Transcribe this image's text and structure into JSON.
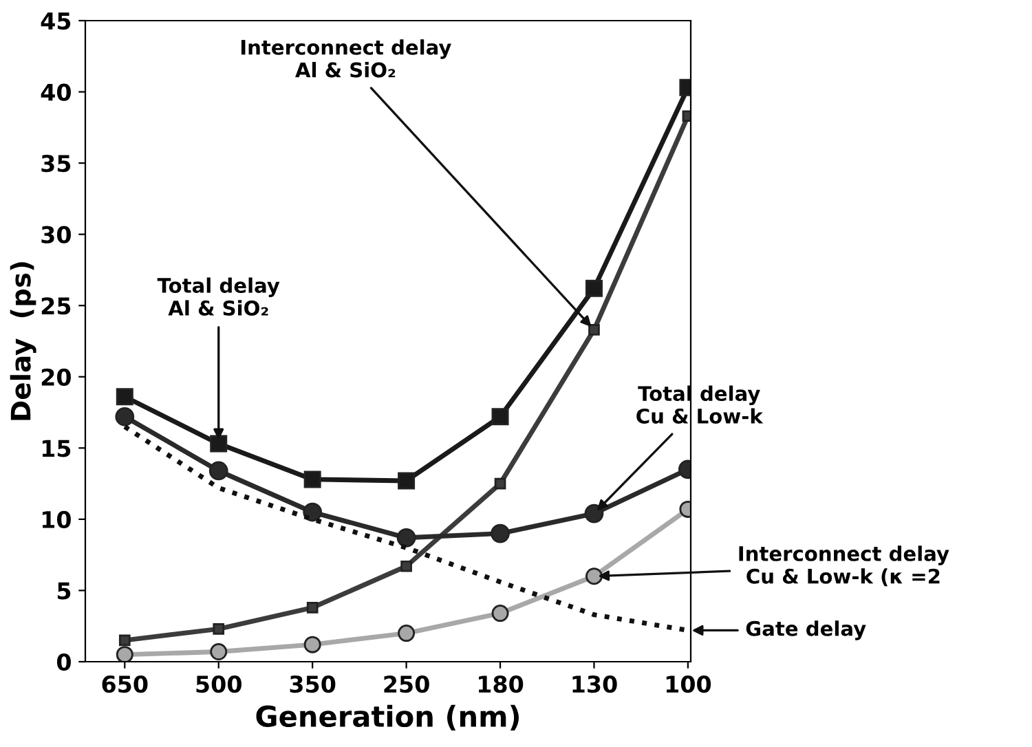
{
  "chart_data": {
    "type": "line",
    "xlabel": "Generation (nm)",
    "ylabel": "Delay  (ps)",
    "categories": [
      "650",
      "500",
      "350",
      "250",
      "180",
      "130",
      "100"
    ],
    "ylim": [
      0,
      45
    ],
    "yticks": [
      0,
      5,
      10,
      15,
      20,
      25,
      30,
      35,
      40,
      45
    ],
    "grid": false,
    "legend": false,
    "series": [
      {
        "color": "#1a1a1a",
        "marker": "square",
        "line_style": "solid",
        "values": [
          18.6,
          15.3,
          12.8,
          12.7,
          17.2,
          26.2,
          40.3
        ]
      },
      {
        "color": "#3c3c3c",
        "marker": "square",
        "line_style": "solid",
        "values": [
          1.5,
          2.3,
          3.8,
          6.7,
          12.5,
          23.3,
          38.3
        ]
      },
      {
        "color": "#2a2a2a",
        "marker": "circle",
        "line_style": "solid",
        "values": [
          17.2,
          13.4,
          10.5,
          8.7,
          9.0,
          10.4,
          13.5
        ]
      },
      {
        "color": "#a8a8a8",
        "marker": "circle",
        "line_style": "solid",
        "values": [
          0.5,
          0.7,
          1.2,
          2.0,
          3.4,
          6.0,
          10.7
        ]
      },
      {
        "color": "#111111",
        "marker": "none",
        "line_style": "dotted",
        "values": [
          16.5,
          12.2,
          10.0,
          8.0,
          5.6,
          3.3,
          2.2
        ]
      }
    ],
    "annotations": [
      {
        "text": "Interconnect delay\nAl & SiO₂",
        "x": "130",
        "y": 23.3
      },
      {
        "text": "Total delay\nAl & SiO₂",
        "x": "500",
        "y": 15.3
      },
      {
        "text": "Total delay\nCu & Low-k",
        "x": "130",
        "y": 10.4
      },
      {
        "text": "Interconnect delay\nCu & Low-k (κ =2",
        "x": "130",
        "y": 6.0
      },
      {
        "text": "Gate delay",
        "x": "100",
        "y": 2.2
      }
    ]
  }
}
